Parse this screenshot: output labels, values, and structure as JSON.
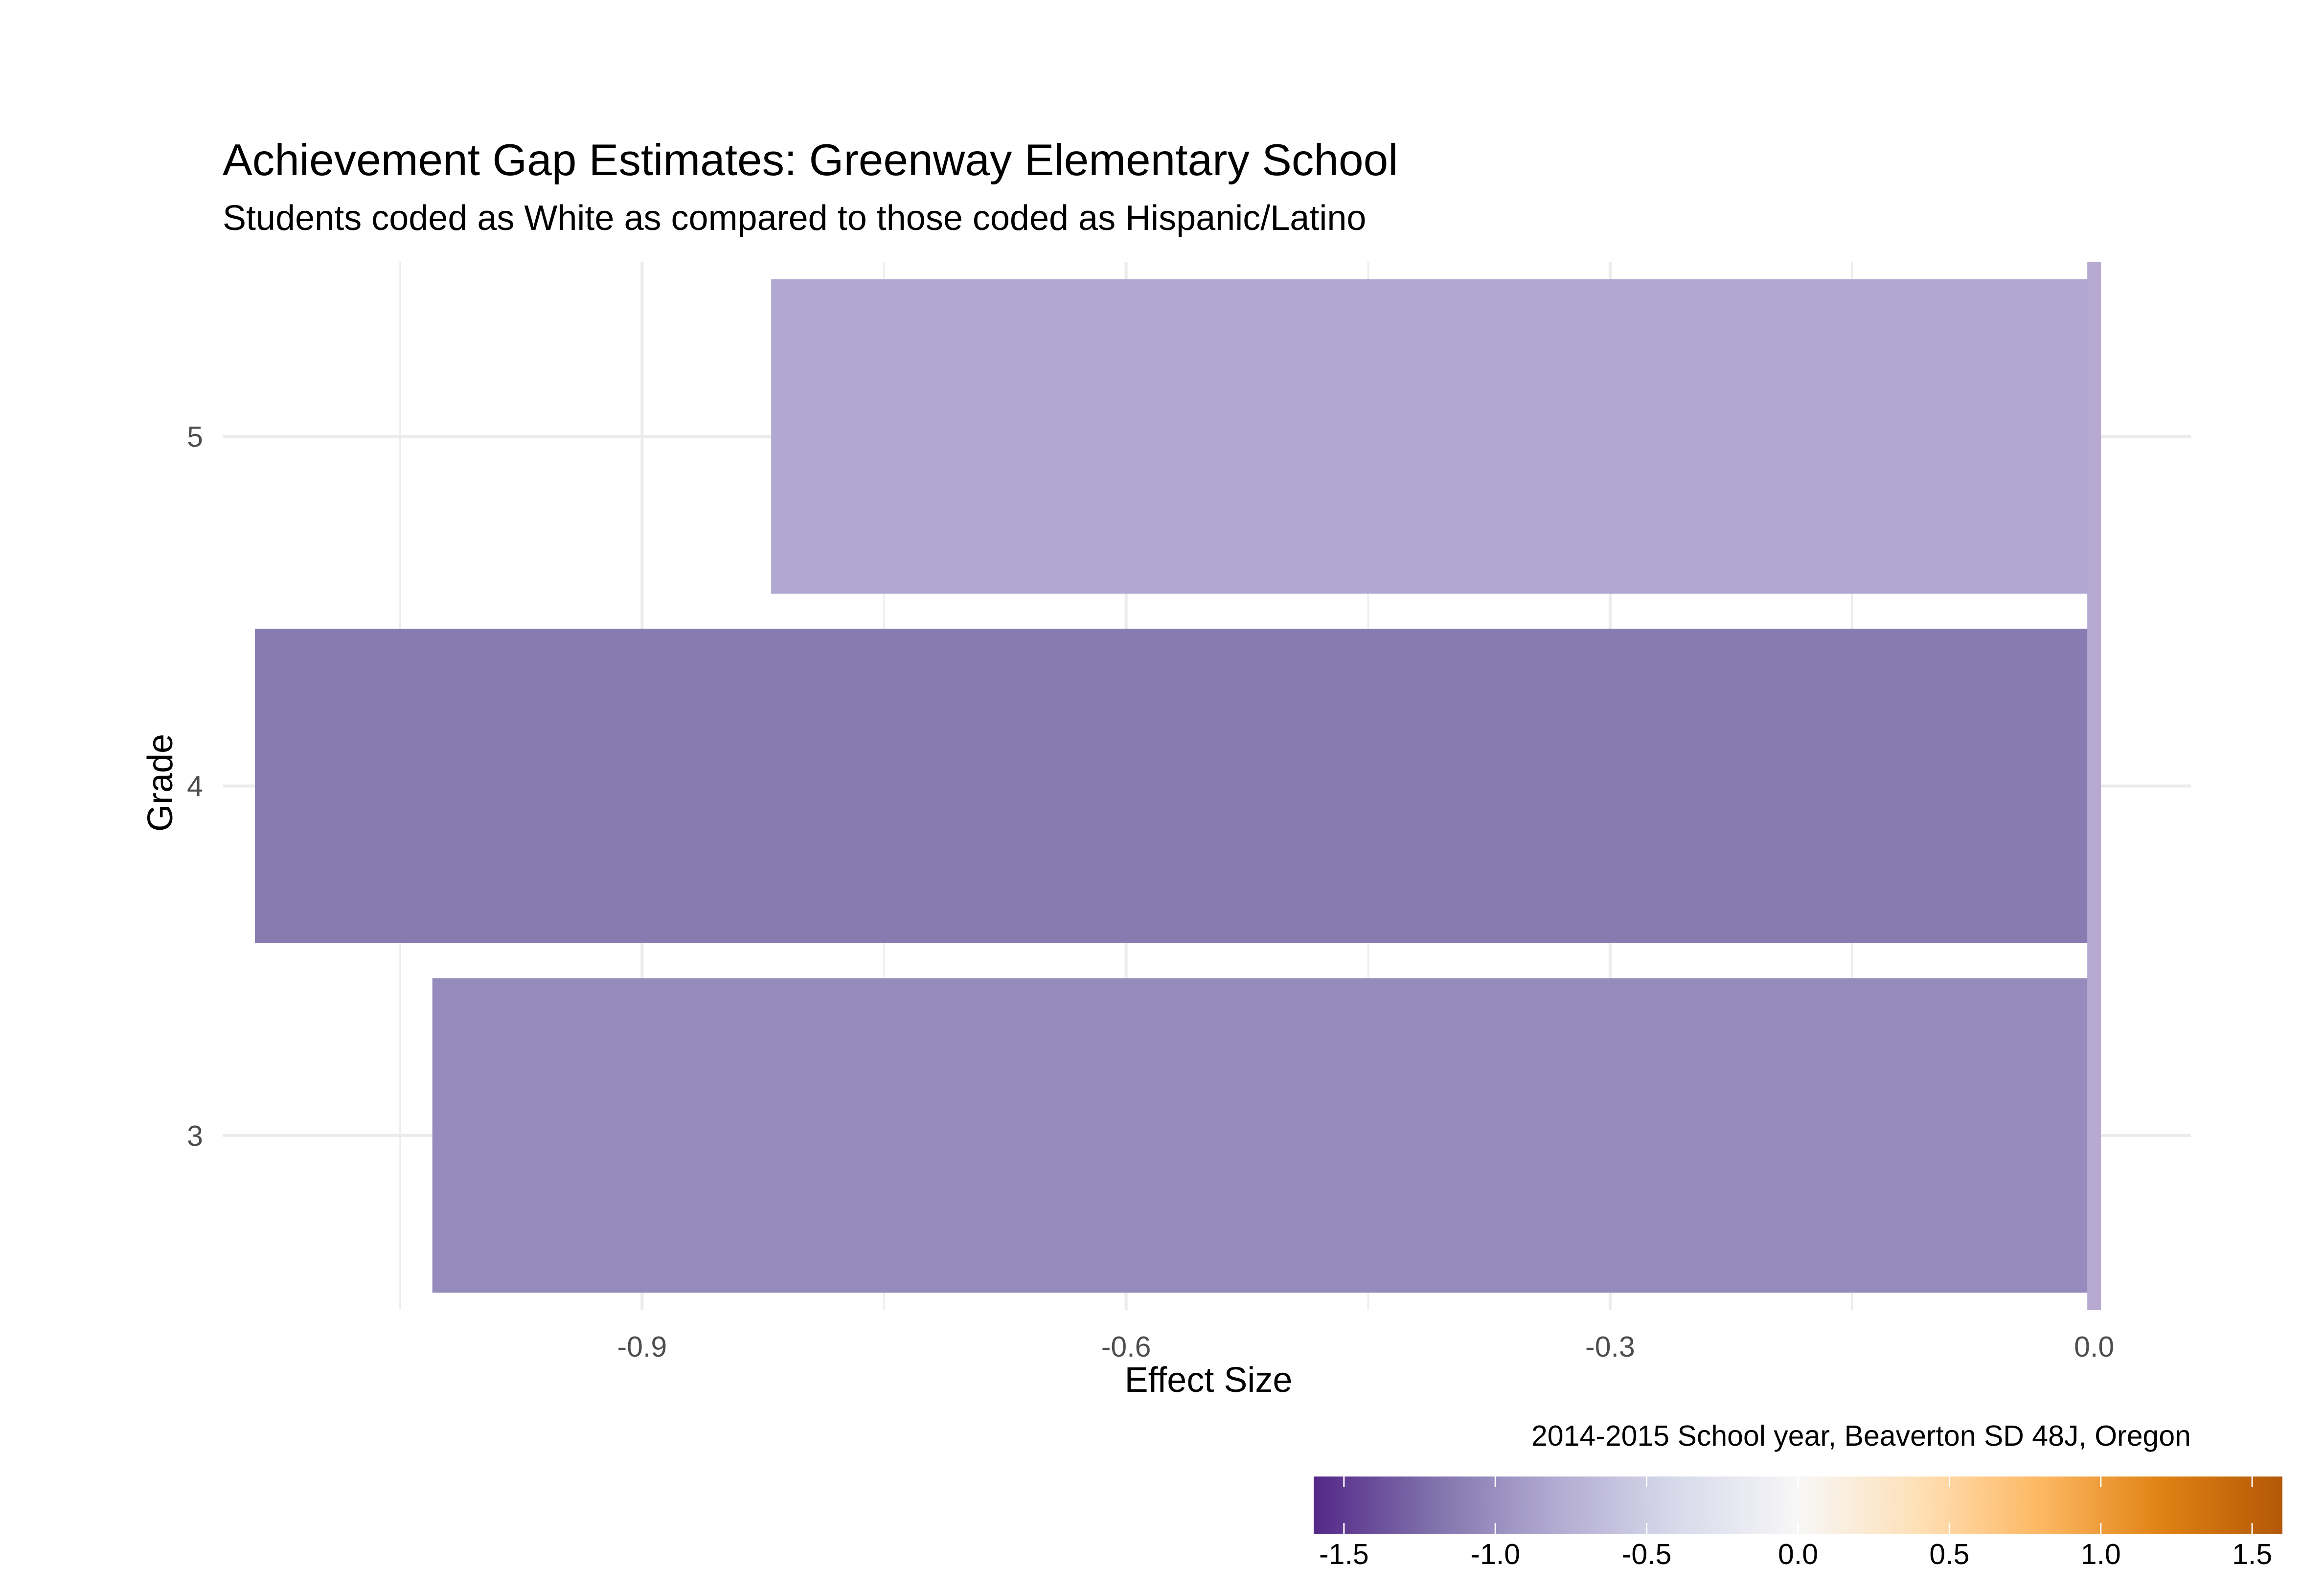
{
  "chart_data": {
    "type": "bar",
    "orientation": "horizontal",
    "title": "Achievement Gap Estimates: Greenway Elementary School",
    "subtitle": "Students coded as White as compared to those coded as Hispanic/Latino",
    "caption": "2014-2015 School year, Beaverton SD 48J, Oregon",
    "xlabel": "Effect Size",
    "ylabel": "Grade",
    "categories": [
      "3",
      "4",
      "5"
    ],
    "values": [
      -1.03,
      -1.14,
      -0.82
    ],
    "xlim": [
      -1.16,
      0.06
    ],
    "x_ticks": [
      -0.9,
      -0.6,
      -0.3,
      0.0
    ],
    "x_tick_labels": [
      "-0.9",
      "-0.6",
      "-0.3",
      "0.0"
    ],
    "grid": true,
    "reference_line": {
      "x": 0.0,
      "color": "#b8a9d2"
    },
    "legend": {
      "type": "colorbar",
      "placement": "bottom-right",
      "limits": [
        -1.6,
        1.6
      ],
      "ticks": [
        -1.5,
        -1.0,
        -0.5,
        0.0,
        0.5,
        1.0,
        1.5
      ],
      "tick_labels": [
        "-1.5",
        "-1.0",
        "-0.5",
        "0.0",
        "0.5",
        "1.0",
        "1.5"
      ],
      "colors": [
        "#542788",
        "#8073ac",
        "#b2abd2",
        "#d8daeb",
        "#f7f7f7",
        "#fee0b6",
        "#fdb863",
        "#e08214",
        "#b35806"
      ]
    }
  }
}
